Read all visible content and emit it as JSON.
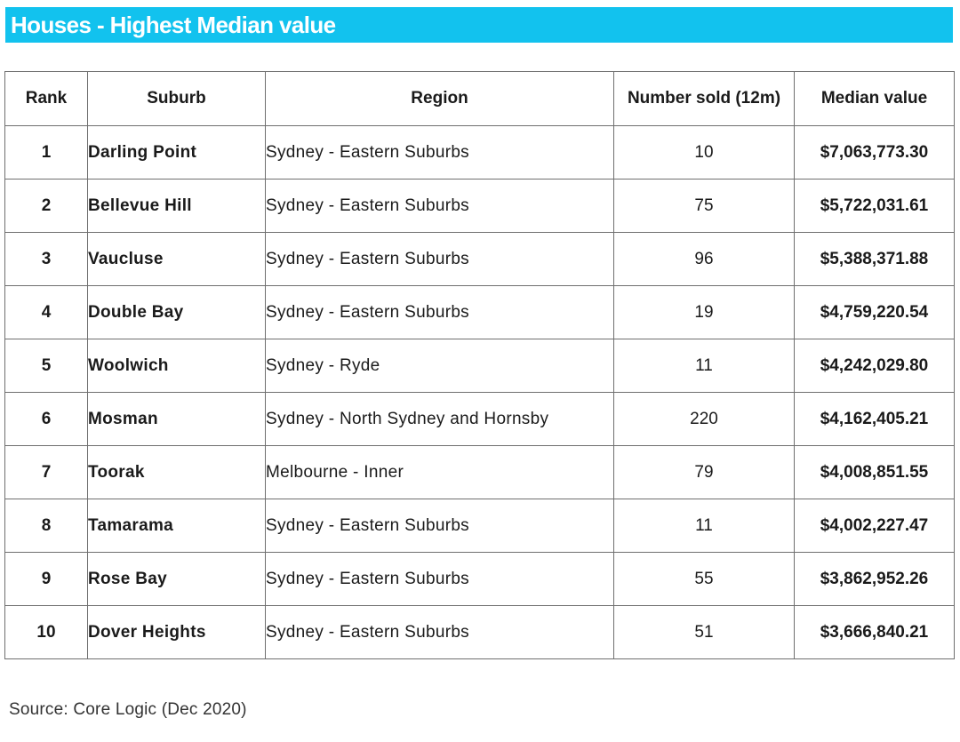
{
  "title": "Houses - Highest Median value",
  "table": {
    "headers": {
      "rank": "Rank",
      "suburb": "Suburb",
      "region": "Region",
      "sold": "Number sold (12m)",
      "median": "Median value"
    },
    "rows": [
      {
        "rank": "1",
        "suburb": "Darling Point",
        "region": "Sydney - Eastern Suburbs",
        "sold": "10",
        "median": "$7,063,773.30"
      },
      {
        "rank": "2",
        "suburb": "Bellevue Hill",
        "region": "Sydney - Eastern Suburbs",
        "sold": "75",
        "median": "$5,722,031.61"
      },
      {
        "rank": "3",
        "suburb": "Vaucluse",
        "region": "Sydney - Eastern Suburbs",
        "sold": "96",
        "median": "$5,388,371.88"
      },
      {
        "rank": "4",
        "suburb": "Double Bay",
        "region": "Sydney - Eastern Suburbs",
        "sold": "19",
        "median": "$4,759,220.54"
      },
      {
        "rank": "5",
        "suburb": "Woolwich",
        "region": "Sydney - Ryde",
        "sold": "11",
        "median": "$4,242,029.80"
      },
      {
        "rank": "6",
        "suburb": "Mosman",
        "region": "Sydney - North Sydney and Hornsby",
        "sold": "220",
        "median": "$4,162,405.21"
      },
      {
        "rank": "7",
        "suburb": "Toorak",
        "region": "Melbourne - Inner",
        "sold": "79",
        "median": "$4,008,851.55"
      },
      {
        "rank": "8",
        "suburb": "Tamarama",
        "region": "Sydney - Eastern Suburbs",
        "sold": "11",
        "median": "$4,002,227.47"
      },
      {
        "rank": "9",
        "suburb": "Rose Bay",
        "region": "Sydney - Eastern Suburbs",
        "sold": "55",
        "median": "$3,862,952.26"
      },
      {
        "rank": "10",
        "suburb": "Dover Heights",
        "region": "Sydney - Eastern Suburbs",
        "sold": "51",
        "median": "$3,666,840.21"
      }
    ]
  },
  "source": "Source: Core Logic (Dec 2020)",
  "colors": {
    "title_bar": "#12c2ee",
    "title_text": "#ffffff",
    "border": "#6f6f6f"
  }
}
